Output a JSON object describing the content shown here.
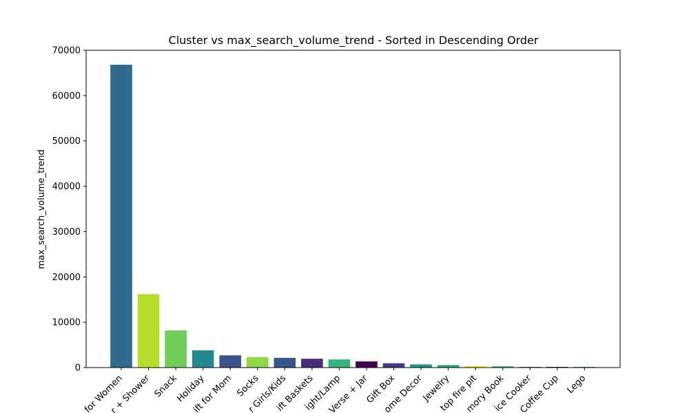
{
  "chart_data": {
    "type": "bar",
    "title": "Cluster vs max_search_volume_trend - Sorted in Descending Order",
    "xlabel": "",
    "ylabel": "max_search_volume_trend",
    "ylim": [
      0,
      70000
    ],
    "yticks": [
      0,
      10000,
      20000,
      30000,
      40000,
      50000,
      60000,
      70000
    ],
    "grid": false,
    "legend": "none",
    "categories": [
      "for Women",
      "r + Shower",
      "Snack",
      "Holiday",
      "ift for Mom",
      "Socks",
      "r Girls/Kids",
      "ift Baskets",
      "ight/Lamp",
      "Verse + Jar",
      "Gift Box",
      "ome Decor",
      "Jewelry",
      "top fire pit",
      "mory Book",
      "ice Cooker",
      "Coffee Cup",
      "Lego"
    ],
    "values": [
      66800,
      16200,
      8200,
      3800,
      2700,
      2300,
      2150,
      1950,
      1800,
      1350,
      950,
      700,
      550,
      300,
      300,
      150,
      150,
      150
    ],
    "colors": [
      "#2f6b8e",
      "#b5de2b",
      "#6ece58",
      "#23898e",
      "#3b528b",
      "#8fd744",
      "#3a548c",
      "#472d7b",
      "#35b779",
      "#440154",
      "#443a83",
      "#1f9a8a",
      "#21a685",
      "#fde725",
      "#3fbc73",
      "#2a788e",
      "#440154",
      "#1f9e89"
    ]
  }
}
